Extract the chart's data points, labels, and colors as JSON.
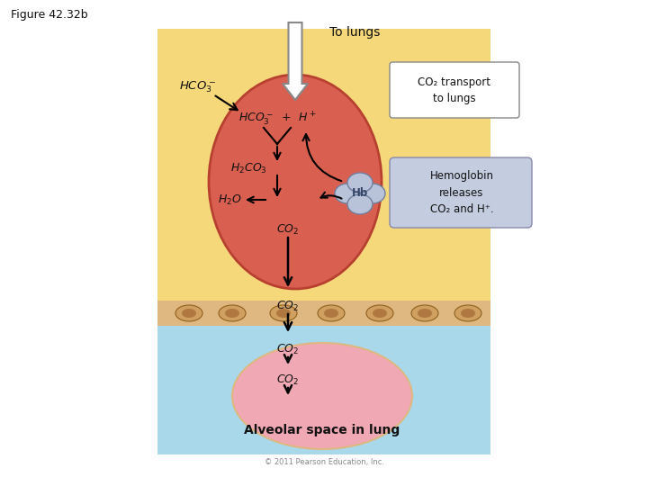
{
  "title": "Figure 42.32b",
  "to_lungs_label": "To lungs",
  "co2_transport_label": "CO₂ transport\nto lungs",
  "hb_label": "Hb",
  "hemo_text": "Hemoglobin\nreleases\nCO₂ and H⁺.",
  "alveolar_label": "Alveolar space in lung",
  "bg_yellow": "#F5D87A",
  "bg_blue": "#A8D8EA",
  "rbc_color": "#D96050",
  "rbc_edge": "#B84030",
  "hb_color": "#B8C2D8",
  "hemo_box_color": "#C4CCE0",
  "cell_wall_color": "#DEB880",
  "alveolar_color": "#F0A8B4",
  "text_color": "#111111",
  "copyright": "© 2011 Pearson Education, Inc."
}
